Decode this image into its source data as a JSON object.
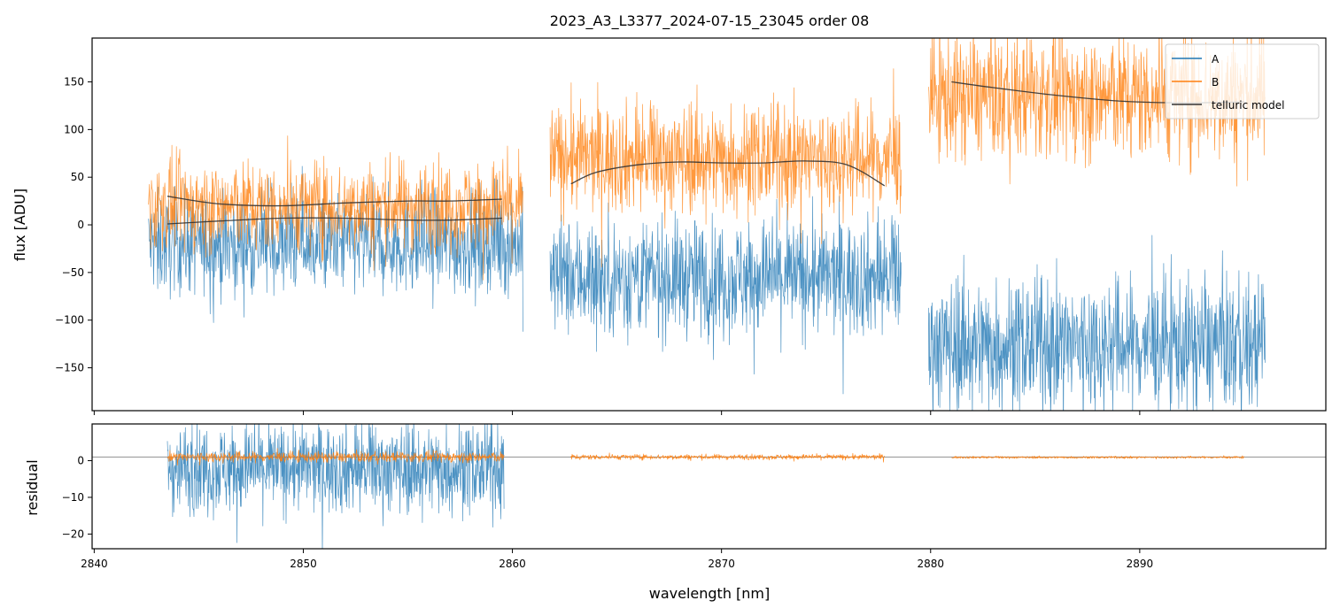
{
  "title": "2023_A3_L3377_2024-07-15_23045  order 08",
  "colors": {
    "A": "#1f77b4",
    "B": "#ff7f0e",
    "model": "#333333",
    "zero_line": "#808080"
  },
  "chart_data": [
    {
      "type": "line",
      "panel": "top",
      "ylabel": "flux [ADU]",
      "xlim": [
        2839.9,
        2898.9
      ],
      "ylim": [
        -195,
        196
      ],
      "yticks": [
        -150,
        -100,
        -50,
        0,
        50,
        100,
        150
      ],
      "xticks": [
        2840,
        2850,
        2860,
        2870,
        2880,
        2890
      ],
      "legend": {
        "placement": "top-right",
        "entries": [
          "A",
          "B",
          "telluric model"
        ]
      },
      "segments": [
        {
          "x_range": [
            2842.6,
            2860.5
          ],
          "A_mean": -20,
          "A_noise": 26,
          "B_mean": 20,
          "B_noise": 23
        },
        {
          "x_range": [
            2861.8,
            2878.6
          ],
          "A_mean": -55,
          "A_noise": 30,
          "B_mean": 70,
          "B_noise": 28
        },
        {
          "x_range": [
            2879.9,
            2896.0
          ],
          "A_mean": -125,
          "A_noise": 34,
          "B_mean": 135,
          "B_noise": 32
        }
      ],
      "series": [
        {
          "name": "telluric model",
          "segment": 1,
          "x": [
            2843.5,
            2846,
            2849,
            2852,
            2855,
            2857,
            2859.5
          ],
          "y": [
            30,
            22,
            20,
            23,
            25,
            25,
            27
          ]
        },
        {
          "name": "telluric model",
          "segment": 1,
          "x": [
            2843.5,
            2846,
            2849,
            2852,
            2855,
            2857,
            2859.5
          ],
          "y": [
            1,
            4,
            7,
            7,
            5,
            5,
            7
          ]
        },
        {
          "name": "telluric model",
          "segment": 2,
          "x": [
            2862.8,
            2864,
            2866,
            2868,
            2870,
            2872,
            2874,
            2876,
            2877.8
          ],
          "y": [
            43,
            55,
            63,
            66,
            65,
            65,
            67,
            63,
            41
          ]
        },
        {
          "name": "telluric model",
          "segment": 3,
          "x": [
            2881.0,
            2883,
            2886,
            2889,
            2892,
            2895.0
          ],
          "y": [
            150,
            144,
            136,
            130,
            128,
            129
          ]
        }
      ]
    },
    {
      "type": "line",
      "panel": "bottom",
      "xlabel": "wavelength [nm]",
      "ylabel": "residual",
      "xlim": [
        2839.9,
        2898.9
      ],
      "ylim": [
        -24,
        10
      ],
      "yticks": [
        -20,
        -10,
        0
      ],
      "xticks": [
        2840,
        2850,
        2860,
        2870,
        2880,
        2890
      ],
      "xtick_labels": [
        "2840",
        "2850",
        "2860",
        "2870",
        "2880",
        "2890"
      ],
      "reference_line": 1,
      "segments": [
        {
          "x_range": [
            2843.5,
            2859.6
          ],
          "A_mean": -2,
          "A_noise": 6,
          "B_mean": 1,
          "B_noise": 0.7
        },
        {
          "x_range": [
            2862.8,
            2877.8
          ],
          "B_mean": 1,
          "B_noise": 0.35
        },
        {
          "x_range": [
            2881.0,
            2895.0
          ],
          "B_mean": 0.9,
          "B_noise": 0.15
        }
      ]
    }
  ]
}
